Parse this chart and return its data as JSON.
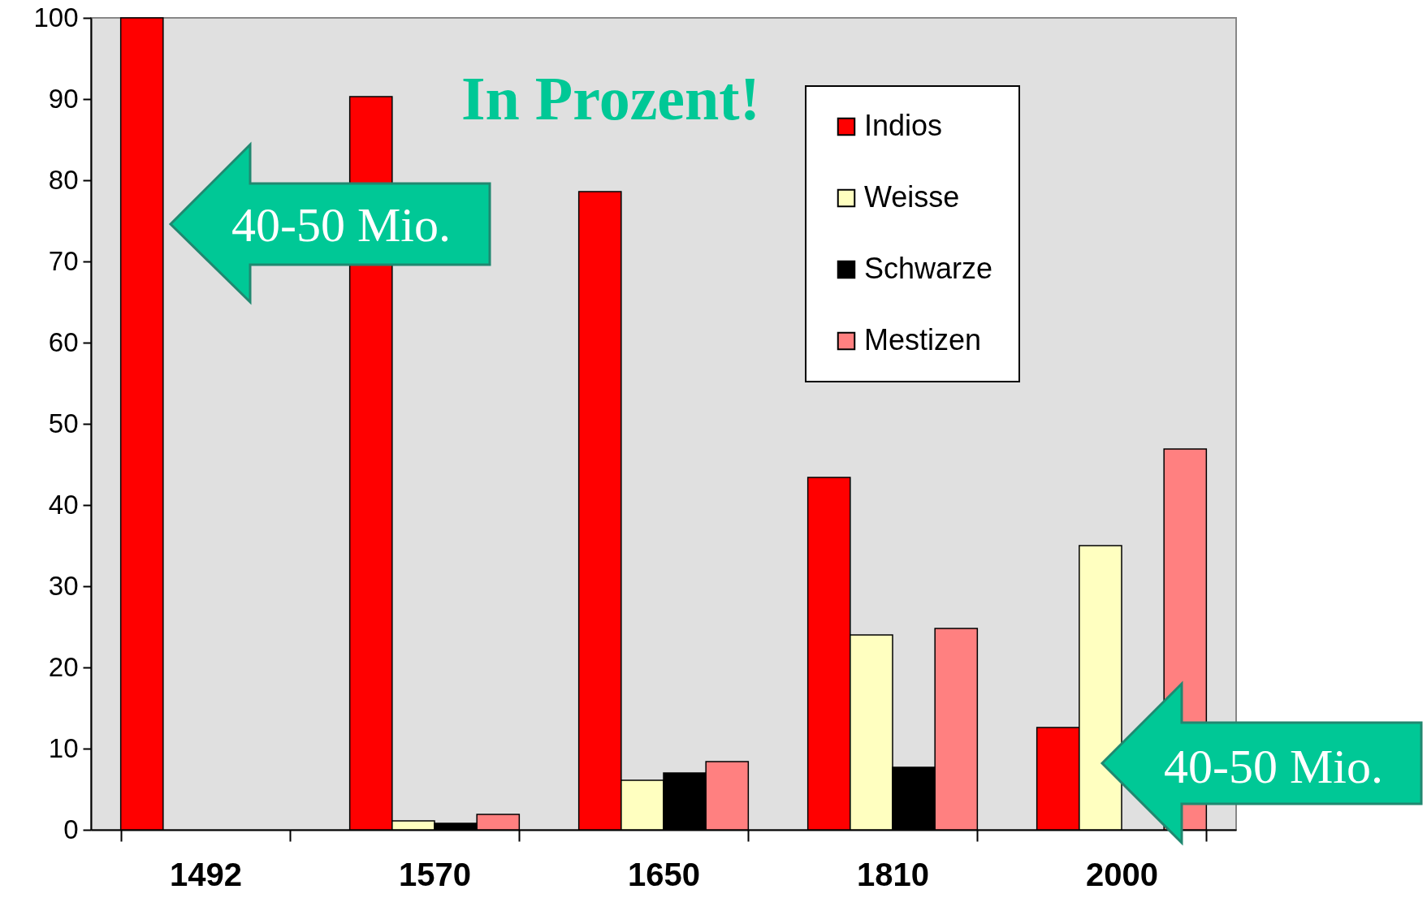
{
  "chart_data": {
    "type": "bar",
    "categories": [
      "1492",
      "1570",
      "1650",
      "1810",
      "2000"
    ],
    "series": [
      {
        "name": "Indios",
        "color": "#ff0000",
        "values": [
          100,
          90.3,
          78.6,
          43.4,
          12.6
        ]
      },
      {
        "name": "Weisse",
        "color": "#ffffc0",
        "values": [
          null,
          1.1,
          6.1,
          24,
          35
        ]
      },
      {
        "name": "Schwarze",
        "color": "#000000",
        "values": [
          null,
          0.8,
          7,
          7.7,
          null
        ]
      },
      {
        "name": "Mestizen",
        "color": "#ff8080",
        "values": [
          null,
          1.9,
          8.4,
          24.8,
          46.9
        ]
      }
    ],
    "ylim": [
      0,
      100
    ],
    "yticks": [
      0,
      10,
      20,
      30,
      40,
      50,
      60,
      70,
      80,
      90,
      100
    ],
    "grid": false,
    "legend": "top right",
    "annotations": [
      "In Prozent!",
      "40-50 Mio.",
      "40-50 Mio."
    ]
  }
}
